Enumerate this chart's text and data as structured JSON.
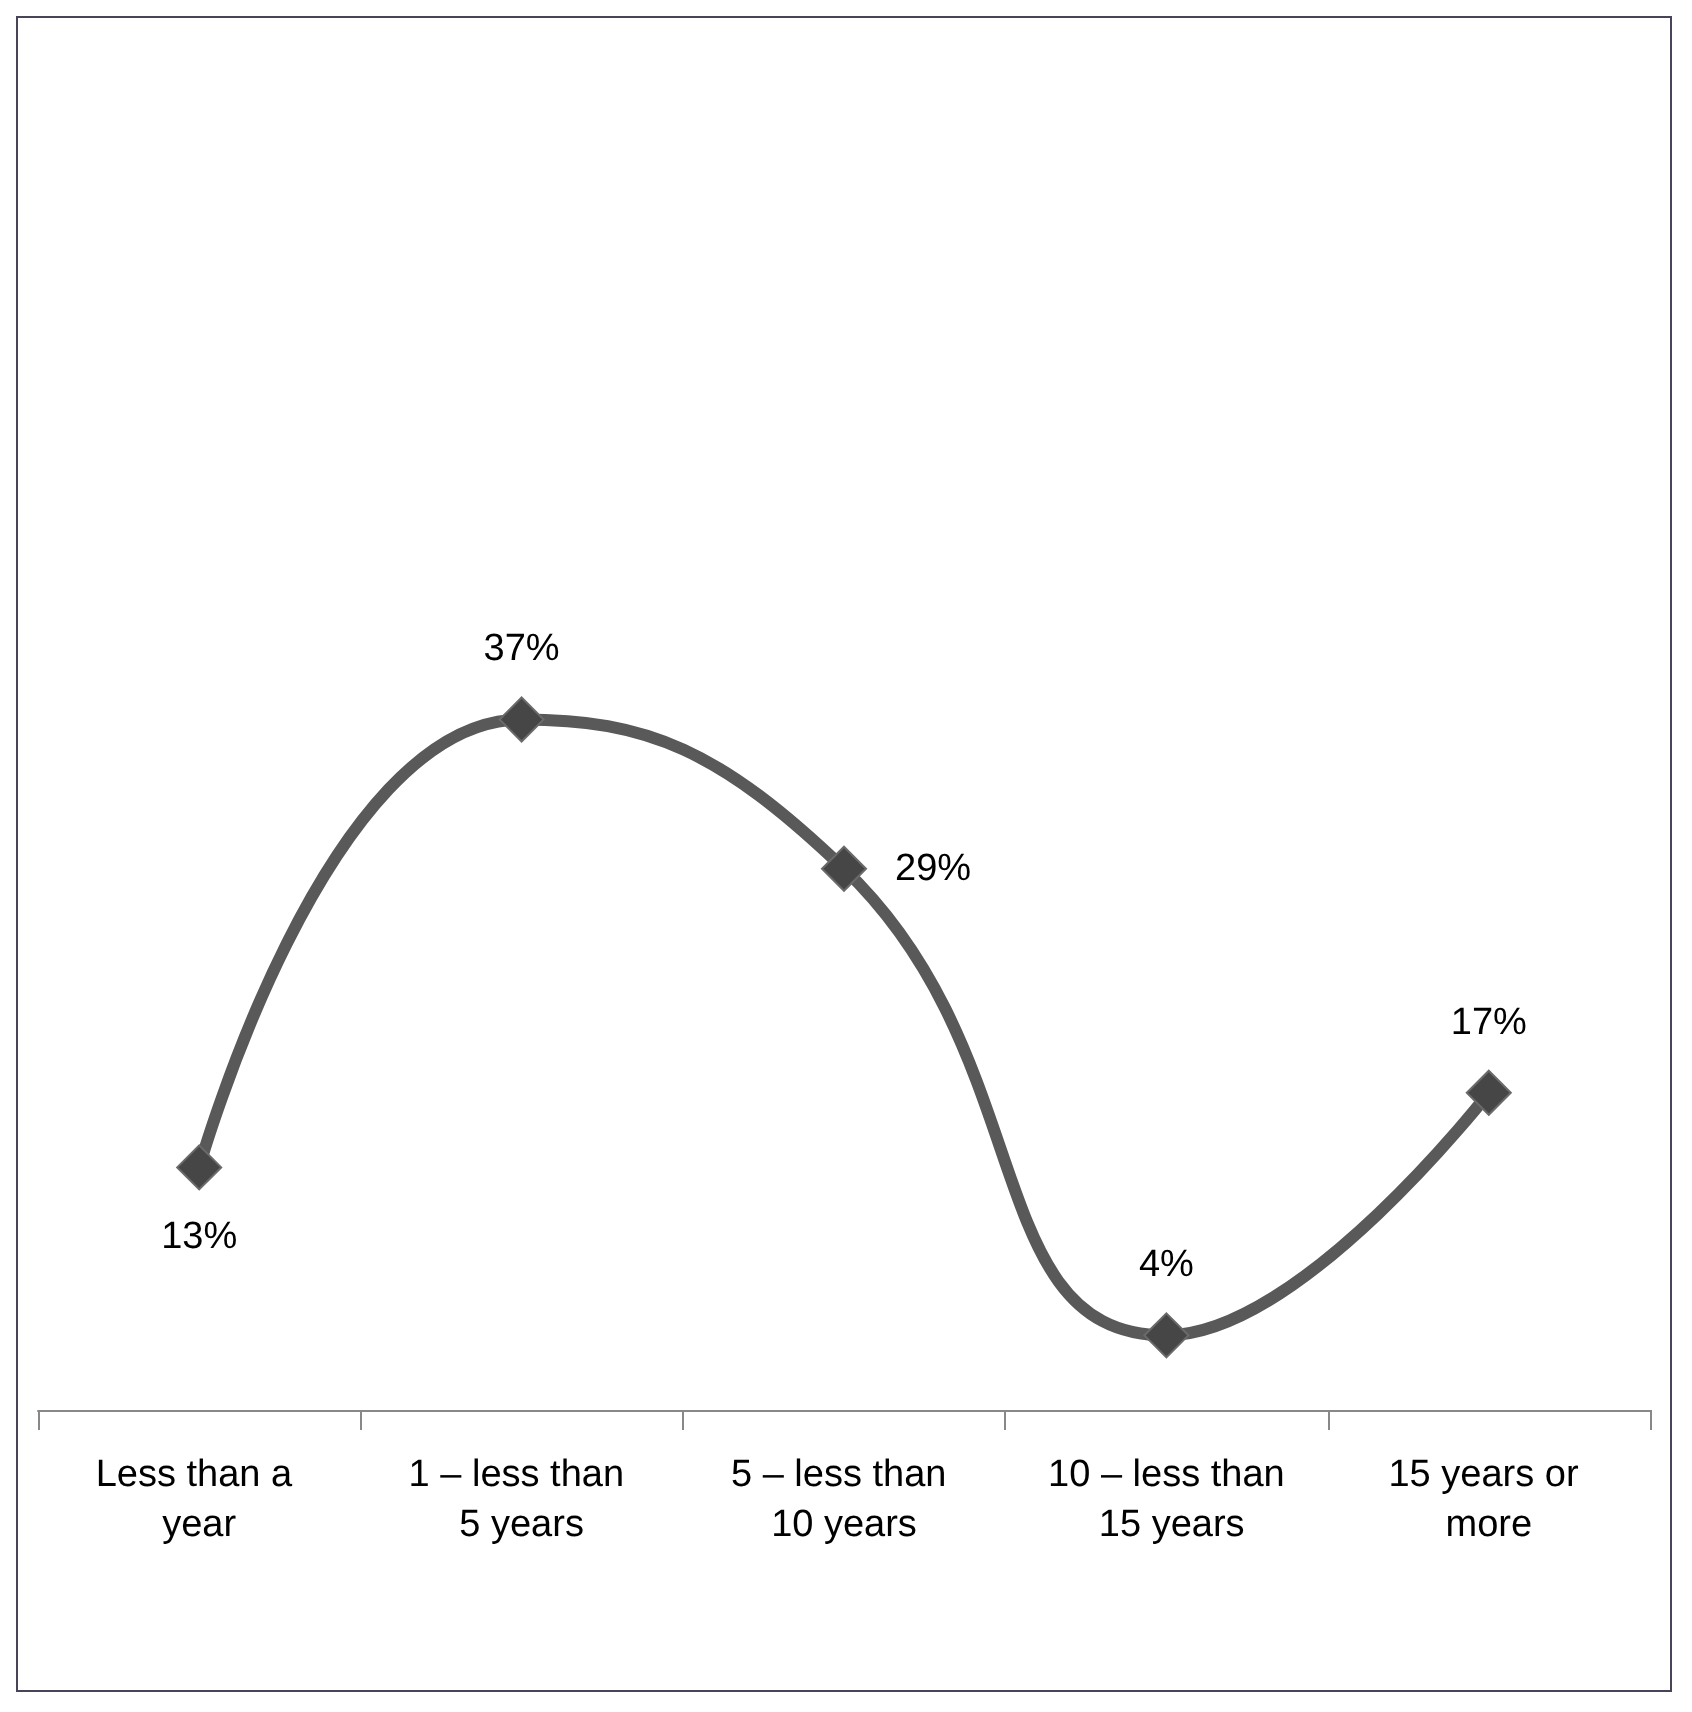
{
  "chart_data": {
    "type": "line",
    "categories": [
      "Less than a year",
      "1 – less than 5 years",
      "5 – less than 10 years",
      "10 – less than 15 years",
      "15 years or more"
    ],
    "series": [
      {
        "color": "#595959",
        "values": [
          13,
          37,
          29,
          4,
          17
        ],
        "value_labels": [
          "13%",
          "37%",
          "29%",
          "4%",
          "17%"
        ]
      }
    ],
    "marker": "diamond",
    "line_style": "solid",
    "grid": false
  }
}
